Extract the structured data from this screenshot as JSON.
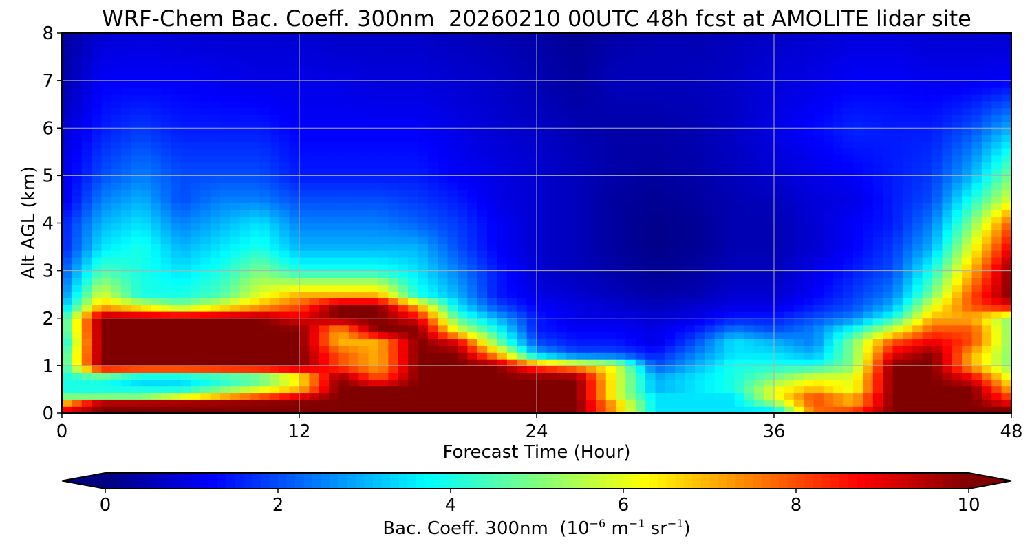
{
  "chart_data": {
    "type": "heatmap",
    "title": "WRF-Chem Bac. Coeff. 300nm  20260210 00UTC 48h fcst at AMOLITE lidar site",
    "xlabel": "Forecast Time (Hour)",
    "ylabel": "Alt AGL (km)",
    "xlim": [
      0,
      48
    ],
    "ylim": [
      0,
      8
    ],
    "x_ticks": [
      0,
      12,
      24,
      36,
      48
    ],
    "y_ticks": [
      0,
      1,
      2,
      3,
      4,
      5,
      6,
      7,
      8
    ],
    "grid": true,
    "colorbar": {
      "label_prefix": "Bac. Coeff. 300nm  (10",
      "label_exp1": "−6",
      "label_mid": " m",
      "label_exp2": "−1",
      "label_mid2": " sr",
      "label_exp3": "−1",
      "label_suffix": ")",
      "range": [
        0,
        10
      ],
      "ticks": [
        0,
        2,
        4,
        6,
        8,
        10
      ],
      "extend": "both",
      "colormap": "jet"
    },
    "x": [
      0,
      2,
      4,
      6,
      8,
      10,
      12,
      14,
      16,
      18,
      20,
      22,
      24,
      26,
      28,
      30,
      32,
      34,
      36,
      38,
      40,
      42,
      44,
      46,
      48
    ],
    "y": [
      0,
      0.1,
      0.2,
      0.35,
      0.5,
      0.75,
      1,
      1.25,
      1.5,
      1.75,
      2,
      2.25,
      2.5,
      3,
      3.5,
      4,
      4.5,
      5,
      6,
      7,
      8
    ],
    "values": [
      [
        10,
        10,
        10,
        10,
        10,
        10,
        10,
        10,
        10,
        10,
        10,
        10,
        10,
        10,
        7,
        3.5,
        3.5,
        3.5,
        3,
        7,
        8,
        10,
        10,
        10,
        10
      ],
      [
        8,
        10,
        10,
        10,
        10,
        10,
        10,
        10,
        10,
        10,
        10,
        10,
        10,
        10,
        7,
        3.5,
        3.5,
        3.5,
        4,
        8,
        8,
        10,
        10,
        10,
        10
      ],
      [
        7,
        10,
        10,
        10,
        10,
        10,
        10,
        10,
        10,
        10,
        10,
        10,
        10,
        10,
        7,
        3.5,
        3.5,
        3.5,
        5,
        8,
        7,
        10,
        10,
        10,
        9
      ],
      [
        5,
        5,
        5,
        6,
        7,
        8,
        9,
        10,
        10,
        10,
        10,
        10,
        10,
        10,
        6,
        3.5,
        3.5,
        3.5,
        6,
        8,
        7,
        10,
        10,
        10,
        8
      ],
      [
        4,
        4,
        4,
        4,
        5,
        6,
        7,
        10,
        10,
        10,
        10,
        10,
        10,
        10,
        6,
        3,
        3.5,
        4,
        6,
        7,
        6,
        10,
        10,
        10,
        7
      ],
      [
        4,
        4,
        3,
        3,
        3.5,
        4,
        6,
        10,
        8,
        10,
        10,
        10,
        10,
        10,
        6,
        3,
        3.5,
        4,
        5,
        6,
        6,
        10,
        10,
        9,
        6
      ],
      [
        4,
        10,
        10,
        10,
        10,
        10,
        10,
        8,
        7,
        10,
        10,
        10,
        8,
        7,
        6,
        2,
        3,
        4,
        4,
        4,
        5,
        10,
        10,
        7,
        5
      ],
      [
        4,
        10,
        10,
        10,
        10,
        10,
        10,
        8,
        7,
        10,
        10,
        7,
        3,
        2,
        2,
        1.5,
        2.5,
        3.5,
        3.5,
        3,
        5,
        9,
        10,
        7,
        5
      ],
      [
        3.5,
        10,
        10,
        10,
        10,
        10,
        10,
        7,
        7,
        10,
        9,
        5,
        2,
        1.5,
        1.5,
        1,
        2,
        3.5,
        3,
        2.5,
        5,
        8,
        9,
        8,
        5
      ],
      [
        4,
        10,
        10,
        10,
        10,
        10,
        10,
        7,
        10,
        10,
        6,
        4,
        1.5,
        1.2,
        1.2,
        1,
        1.5,
        2.5,
        2,
        2.5,
        4,
        6,
        8,
        8,
        5
      ],
      [
        4,
        10,
        10,
        10,
        10,
        10,
        9,
        10,
        10,
        9,
        4.5,
        3,
        1.5,
        1,
        1,
        0.8,
        1,
        1.5,
        1.5,
        2,
        2.5,
        4,
        7,
        7,
        5
      ],
      [
        3,
        7,
        6,
        5,
        6,
        7,
        8,
        10,
        10,
        7,
        3.5,
        2,
        1.2,
        1,
        0.8,
        0.6,
        0.8,
        1,
        1,
        1.5,
        2,
        3,
        6,
        8,
        9
      ],
      [
        2.5,
        6,
        4,
        4,
        4.5,
        6,
        7,
        7,
        7,
        4,
        3,
        1.5,
        1,
        0.8,
        0.6,
        0.4,
        0.5,
        0.8,
        0.8,
        1.2,
        1.8,
        2.5,
        5,
        8,
        10
      ],
      [
        2,
        4.5,
        4,
        3.5,
        4,
        5,
        4,
        4,
        4,
        3.5,
        2.5,
        1.5,
        0.8,
        0.6,
        0.4,
        0.2,
        0.3,
        0.6,
        0.6,
        1,
        1.5,
        2,
        4,
        7,
        10
      ],
      [
        1.5,
        3.5,
        4,
        3,
        3.5,
        4,
        3,
        3,
        3,
        3,
        2,
        1.2,
        0.8,
        0.6,
        0.3,
        0.1,
        0.2,
        0.5,
        0.5,
        0.8,
        1.2,
        1.8,
        3,
        6,
        9
      ],
      [
        1.5,
        3,
        3.5,
        2.5,
        3,
        3.5,
        2.5,
        2.5,
        2.5,
        2.2,
        1.8,
        1.2,
        0.8,
        0.6,
        0.3,
        0.1,
        0.2,
        0.5,
        0.5,
        0.8,
        1.2,
        1.5,
        2.5,
        5,
        8
      ],
      [
        1,
        2.5,
        3,
        2,
        2.5,
        2.5,
        2,
        2,
        2,
        1.8,
        1.5,
        1,
        0.8,
        0.6,
        0.3,
        0.2,
        0.3,
        0.5,
        0.6,
        0.9,
        1,
        1.5,
        2,
        4,
        6
      ],
      [
        1,
        2,
        2.5,
        2,
        2,
        2,
        1.5,
        1.5,
        1.5,
        1.5,
        1.2,
        1,
        0.8,
        0.6,
        0.4,
        0.3,
        0.4,
        0.6,
        0.8,
        1,
        1.2,
        1.5,
        1.8,
        3,
        5
      ],
      [
        0.8,
        1.5,
        1.8,
        1.5,
        1.5,
        1.5,
        1.2,
        1.2,
        1.2,
        1.2,
        1,
        0.8,
        0.7,
        0.5,
        0.4,
        0.4,
        0.5,
        0.7,
        1,
        1.3,
        1.6,
        1.5,
        1.5,
        2,
        3
      ],
      [
        0.4,
        1.2,
        1.2,
        1.2,
        1.1,
        1,
        1,
        1,
        0.9,
        0.9,
        0.8,
        0.7,
        0.5,
        0.3,
        0.6,
        0.6,
        0.6,
        0.7,
        0.9,
        1,
        1.2,
        1.2,
        1.1,
        1.1,
        1.2
      ],
      [
        0.3,
        0.8,
        0.9,
        0.8,
        0.8,
        0.8,
        0.8,
        0.7,
        0.7,
        0.7,
        0.6,
        0.5,
        0.4,
        0.2,
        0.4,
        0.5,
        0.5,
        0.6,
        0.7,
        0.8,
        0.9,
        0.9,
        0.8,
        0.8,
        0.8
      ]
    ]
  }
}
